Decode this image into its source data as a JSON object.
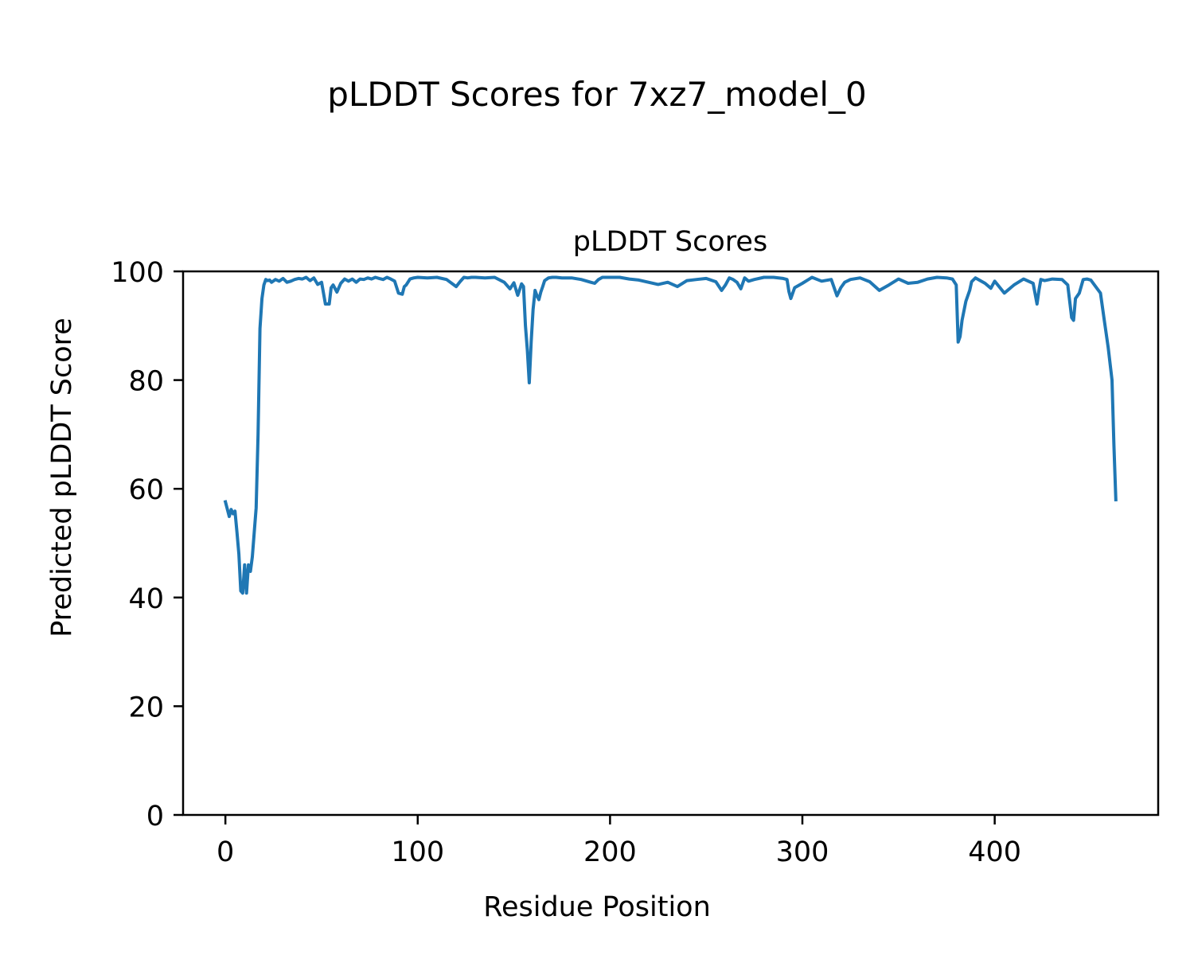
{
  "figure": {
    "suptitle": "pLDDT Scores for 7xz7_model_0"
  },
  "chart_data": {
    "type": "line",
    "title": "pLDDT Scores",
    "xlabel": "Residue Position",
    "ylabel": "Predicted pLDDT Score",
    "xlim": [
      -22,
      485
    ],
    "ylim": [
      0,
      100
    ],
    "xticks": [
      0,
      100,
      200,
      300,
      400
    ],
    "yticks": [
      0,
      20,
      40,
      60,
      80,
      100
    ],
    "grid": false,
    "series": [
      {
        "color": "#1f77b4",
        "x": [
          0,
          2,
          3,
          4,
          5,
          6,
          7,
          8,
          9,
          10,
          11,
          12,
          13,
          14,
          15,
          16,
          17,
          18,
          19,
          20,
          21,
          22,
          23,
          24,
          26,
          28,
          30,
          32,
          34,
          36,
          38,
          40,
          42,
          44,
          46,
          48,
          50,
          52,
          54,
          55,
          56,
          58,
          60,
          62,
          64,
          66,
          68,
          70,
          72,
          74,
          76,
          78,
          80,
          82,
          84,
          86,
          88,
          90,
          92,
          93,
          94,
          96,
          98,
          100,
          105,
          110,
          115,
          120,
          122,
          124,
          126,
          128,
          130,
          135,
          140,
          145,
          148,
          150,
          152,
          154,
          155,
          156,
          157,
          158,
          159,
          160,
          161,
          162,
          163,
          164,
          165,
          166,
          168,
          170,
          172,
          175,
          180,
          185,
          190,
          192,
          194,
          196,
          200,
          205,
          210,
          215,
          220,
          225,
          230,
          235,
          240,
          245,
          250,
          255,
          258,
          260,
          262,
          264,
          266,
          268,
          270,
          272,
          275,
          280,
          285,
          290,
          292,
          293,
          294,
          296,
          300,
          305,
          310,
          315,
          318,
          320,
          322,
          325,
          330,
          335,
          340,
          345,
          350,
          355,
          360,
          365,
          370,
          375,
          378,
          380,
          381,
          382,
          383,
          385,
          387,
          388,
          390,
          395,
          398,
          400,
          405,
          410,
          415,
          420,
          422,
          423,
          424,
          426,
          430,
          435,
          438,
          440,
          441,
          442,
          444,
          446,
          448,
          450,
          455,
          457,
          459,
          461,
          462,
          463
        ],
        "y": [
          57.6,
          54.9,
          56.2,
          55.4,
          55.9,
          52,
          48,
          41.2,
          40.8,
          46,
          40.8,
          46,
          44.8,
          47.5,
          52,
          56.5,
          70,
          89.5,
          95,
          97.5,
          98.5,
          98.3,
          98.4,
          98,
          98.5,
          98.2,
          98.7,
          98,
          98.2,
          98.5,
          98.7,
          98.6,
          98.9,
          98.3,
          98.8,
          97.6,
          98,
          94,
          94,
          97,
          97.5,
          96.2,
          97.8,
          98.6,
          98.2,
          98.6,
          98,
          98.6,
          98.5,
          98.8,
          98.6,
          98.9,
          98.7,
          98.5,
          98.9,
          98.6,
          98.2,
          96,
          95.8,
          97.2,
          97.5,
          98.6,
          98.8,
          98.9,
          98.8,
          98.9,
          98.5,
          97.2,
          98.1,
          98.9,
          98.8,
          98.9,
          98.9,
          98.8,
          98.9,
          98,
          96.8,
          97.9,
          95.6,
          97.7,
          97.2,
          90,
          85.5,
          79.5,
          87,
          93,
          96.5,
          95.5,
          94.8,
          96.2,
          97.2,
          98.3,
          98.8,
          98.9,
          98.9,
          98.8,
          98.8,
          98.5,
          98,
          97.8,
          98.5,
          98.9,
          98.9,
          98.9,
          98.6,
          98.4,
          98,
          97.6,
          98,
          97.2,
          98.3,
          98.5,
          98.7,
          98.1,
          96.5,
          97.5,
          98.8,
          98.5,
          98,
          96.8,
          98.8,
          98.2,
          98.5,
          98.9,
          98.9,
          98.7,
          98.5,
          96.3,
          95,
          97,
          97.8,
          98.9,
          98.2,
          98.5,
          95.5,
          97,
          98,
          98.5,
          98.8,
          98.1,
          96.5,
          97.5,
          98.6,
          97.8,
          98,
          98.6,
          98.9,
          98.8,
          98.6,
          97.5,
          87,
          88,
          91,
          94.5,
          96.5,
          98.1,
          98.8,
          97.8,
          96.9,
          98.2,
          96,
          97.5,
          98.6,
          97.8,
          94,
          96.5,
          98.5,
          98.3,
          98.6,
          98.5,
          97.5,
          91.5,
          91,
          95,
          96,
          98.5,
          98.6,
          98.4,
          96,
          91,
          86,
          80,
          68,
          58
        ]
      }
    ]
  }
}
